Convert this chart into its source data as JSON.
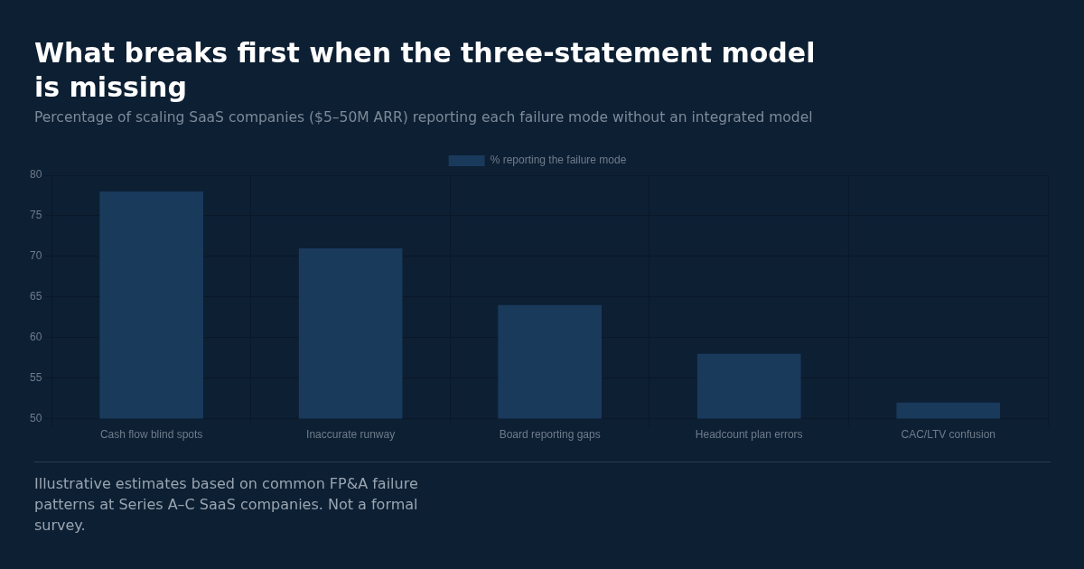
{
  "chart_data": {
    "type": "bar",
    "title": "What breaks first when the three-statement model is missing",
    "subtitle": "Percentage of scaling SaaS companies ($5–50M ARR) reporting each failure mode without an integrated model",
    "categories": [
      "Cash flow blind spots",
      "Inaccurate runway",
      "Board reporting gaps",
      "Headcount plan errors",
      "CAC/LTV confusion"
    ],
    "series": [
      {
        "name": "% reporting the failure mode",
        "color": "#1a3a5c",
        "values": [
          78,
          71,
          64,
          58,
          52
        ]
      }
    ],
    "ylim": [
      50,
      80
    ],
    "yticks": [
      50,
      55,
      60,
      65,
      70,
      75,
      80
    ],
    "grid": true,
    "legend": "top",
    "annotations": [
      "Illustrative estimates based on common FP&A failure patterns at Series A–C SaaS companies. Not a formal survey."
    ]
  }
}
